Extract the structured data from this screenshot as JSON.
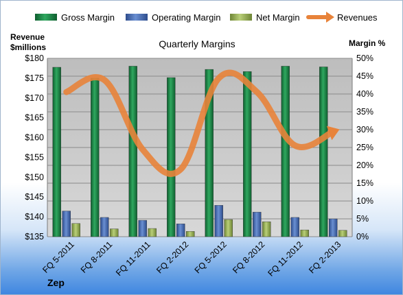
{
  "chart_data": {
    "type": "bar",
    "title": "Quarterly Margins",
    "categories": [
      "FQ 5-2011",
      "FQ 8-2011",
      "FQ 11-2011",
      "FQ 2-2012",
      "FQ 5-2012",
      "FQ 8-2012",
      "FQ 11-2012",
      "FQ 2-2013"
    ],
    "series": [
      {
        "name": "Gross Margin",
        "kind": "bar",
        "axis": "right",
        "color": "#1f8a4c",
        "values": [
          47.5,
          44.5,
          47.8,
          44.6,
          46.9,
          46.3,
          47.8,
          47.6
        ]
      },
      {
        "name": "Operating Margin",
        "kind": "bar",
        "axis": "right",
        "color": "#4a6fb5",
        "values": [
          7.2,
          5.4,
          4.6,
          3.6,
          8.8,
          6.9,
          5.4,
          5.0
        ]
      },
      {
        "name": "Net Margin",
        "kind": "bar",
        "axis": "right",
        "color": "#9bb55a",
        "values": [
          3.7,
          2.2,
          2.3,
          1.5,
          4.8,
          4.2,
          1.9,
          1.8
        ]
      },
      {
        "name": "Revenues",
        "kind": "line",
        "axis": "left",
        "color": "#e8833a",
        "values": [
          171.5,
          174.5,
          157.0,
          152.0,
          175.0,
          171.5,
          158.0,
          161.5
        ]
      }
    ],
    "left_axis": {
      "label": "Revenue $millions",
      "label_lines": [
        "Revenue",
        "$millions"
      ],
      "ylim": [
        135,
        180
      ],
      "ticks": [
        "$135",
        "$140",
        "$145",
        "$150",
        "$155",
        "$160",
        "$165",
        "$170",
        "$175",
        "$180"
      ]
    },
    "right_axis": {
      "label": "Margin %",
      "ylim": [
        0,
        50
      ],
      "ticks": [
        "0%",
        "5%",
        "10%",
        "15%",
        "20%",
        "25%",
        "30%",
        "35%",
        "40%",
        "45%",
        "50%"
      ]
    },
    "legend": {
      "position": "top",
      "entries": [
        "Gross Margin",
        "Operating Margin",
        "Net Margin",
        "Revenues"
      ]
    },
    "grid": true,
    "plot_background": "#c9c9c9"
  },
  "footer": {
    "company": "Zep"
  }
}
